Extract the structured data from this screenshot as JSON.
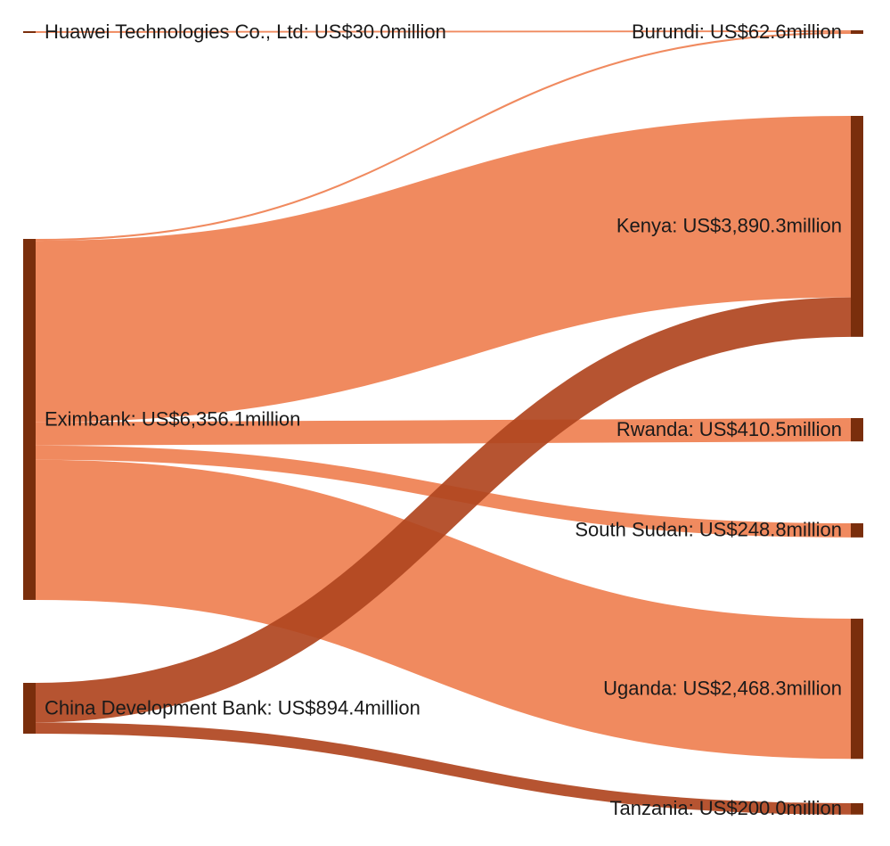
{
  "chart_data": {
    "type": "sankey",
    "units": "US$ million",
    "colors": {
      "node": "#7a2e0c",
      "link_from_eximbank": "#ee7d4e",
      "link_from_cdb": "#b0451f",
      "link_from_huawei": "#ee7d4e"
    },
    "sources": [
      {
        "id": "huawei",
        "name": "Huawei Technologies Co., Ltd",
        "label": "Huawei Technologies Co., Ltd: US$30.0million",
        "value": 30.0
      },
      {
        "id": "eximbank",
        "name": "Eximbank",
        "label": "Eximbank: US$6,356.1million",
        "value": 6356.1
      },
      {
        "id": "cdb",
        "name": "China Development Bank",
        "label": "China Development Bank: US$894.4million",
        "value": 894.4
      }
    ],
    "targets": [
      {
        "id": "burundi",
        "name": "Burundi",
        "label": "Burundi: US$62.6million",
        "value": 62.6
      },
      {
        "id": "kenya",
        "name": "Kenya",
        "label": "Kenya: US$3,890.3million",
        "value": 3890.3
      },
      {
        "id": "rwanda",
        "name": "Rwanda",
        "label": "Rwanda: US$410.5million",
        "value": 410.5
      },
      {
        "id": "south_sudan",
        "name": "South Sudan",
        "label": "South Sudan: US$248.8million",
        "value": 248.8
      },
      {
        "id": "uganda",
        "name": "Uganda",
        "label": "Uganda: US$2,468.3million",
        "value": 2468.3
      },
      {
        "id": "tanzania",
        "name": "Tanzania",
        "label": "Tanzania: US$200.0million",
        "value": 200.0
      }
    ],
    "links": [
      {
        "source": "huawei",
        "target": "burundi",
        "value": 30.0
      },
      {
        "source": "eximbank",
        "target": "burundi",
        "value": 32.6
      },
      {
        "source": "eximbank",
        "target": "kenya",
        "value": 3195.9
      },
      {
        "source": "eximbank",
        "target": "rwanda",
        "value": 410.5
      },
      {
        "source": "eximbank",
        "target": "south_sudan",
        "value": 248.8
      },
      {
        "source": "eximbank",
        "target": "uganda",
        "value": 2468.3
      },
      {
        "source": "cdb",
        "target": "kenya",
        "value": 694.4
      },
      {
        "source": "cdb",
        "target": "tanzania",
        "value": 200.0
      }
    ]
  }
}
